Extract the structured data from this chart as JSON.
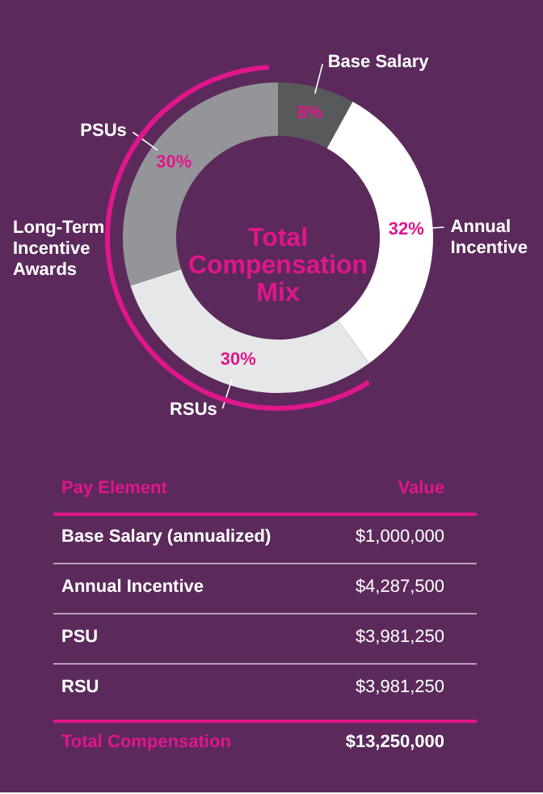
{
  "chart_data": [
    {
      "type": "donut",
      "title": "Total Compensation Mix",
      "categories": [
        "Base Salary",
        "Annual Incentive",
        "RSUs",
        "PSUs"
      ],
      "values": [
        8,
        32,
        30,
        30
      ],
      "colors": [
        "#58595b",
        "#ffffff",
        "#e6e7e8",
        "#939598"
      ],
      "value_labels": [
        "8%",
        "32%",
        "30%",
        "30%"
      ],
      "annotations": [
        "Long-Term Incentive Awards"
      ]
    },
    {
      "type": "other",
      "annotations": [
        "Pay Element",
        "Value",
        "Base Salary (annualized)",
        "$1,000,000",
        "Annual Incentive",
        "$4,287,500",
        "PSU",
        "$3,981,250",
        "RSU",
        "$3,981,250",
        "Total Compensation",
        "$13,250,000"
      ]
    }
  ]
}
